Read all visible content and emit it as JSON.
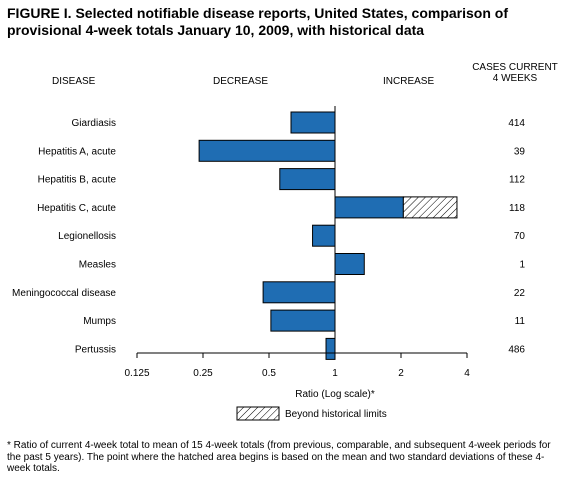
{
  "figure": {
    "title": "FIGURE I. Selected notifiable disease reports, United States, comparison of provisional 4-week totals January 10, 2009, with historical data",
    "footnote": "* Ratio of current 4-week total to mean of 15 4-week totals (from previous, comparable, and subsequent 4-week periods for the past 5 years). The point where the hatched area begins is based on the mean and two standard deviations of these 4-week totals."
  },
  "headers": {
    "disease": "DISEASE",
    "decrease": "DECREASE",
    "increase": "INCREASE",
    "cases_line1": "CASES CURRENT",
    "cases_line2": "4 WEEKS"
  },
  "chart_data": {
    "type": "bar",
    "orientation": "horizontal",
    "xlabel": "Ratio (Log scale)*",
    "x_scale": "log2",
    "xlim": [
      0.125,
      4
    ],
    "baseline": 1,
    "x_ticks": [
      0.125,
      0.25,
      0.5,
      1,
      2,
      4
    ],
    "x_tick_labels": [
      "0.125",
      "0.25",
      "0.5",
      "1",
      "2",
      "4"
    ],
    "legend": {
      "label": "Beyond historical limits",
      "placement": "bottom-center"
    },
    "colors": {
      "bar": "#1f6db3",
      "outline": "#000000"
    },
    "categories": [
      "Giardiasis",
      "Hepatitis A, acute",
      "Hepatitis B, acute",
      "Hepatitis C, acute",
      "Legionellosis",
      "Measles",
      "Meningococcal disease",
      "Mumps",
      "Pertussis"
    ],
    "ratios": [
      0.63,
      0.24,
      0.56,
      3.6,
      0.79,
      1.36,
      0.47,
      0.51,
      0.91
    ],
    "hatch_start": [
      null,
      null,
      null,
      2.05,
      null,
      null,
      null,
      null,
      null
    ],
    "cases": [
      "414",
      "39",
      "112",
      "118",
      "70",
      "1",
      "22",
      "11",
      "486"
    ]
  }
}
